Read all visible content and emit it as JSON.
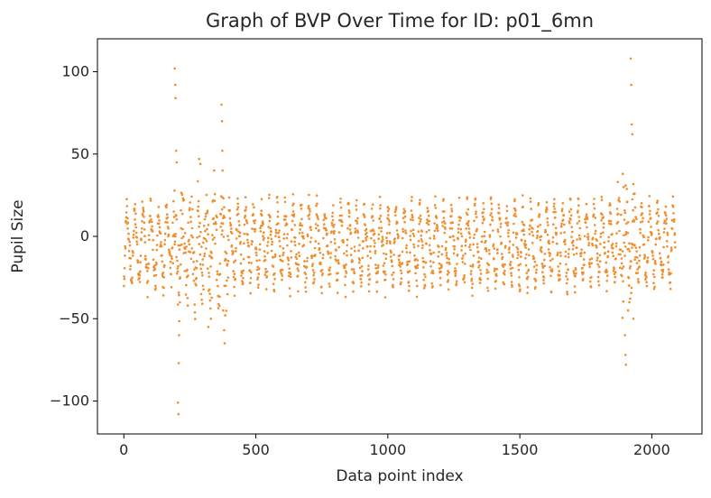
{
  "chart_data": {
    "type": "scatter",
    "title": "Graph of BVP Over Time for ID: p01_6mn",
    "xlabel": "Data point index",
    "ylabel": "Pupil Size",
    "xlim": [
      -100,
      2190
    ],
    "ylim": [
      -120,
      120
    ],
    "xticks": [
      0,
      500,
      1000,
      1500,
      2000
    ],
    "yticks": [
      -100,
      -50,
      0,
      50,
      100
    ],
    "xtick_labels": [
      "0",
      "500",
      "1000",
      "1500",
      "2000"
    ],
    "ytick_labels": [
      "−100",
      "−50",
      "0",
      "50",
      "100"
    ],
    "grid": false,
    "marker_color": "#f28e2b",
    "description": "About 2090 points oscillating between roughly -30 and +20 with ~70 peaks; large spikes near index 190-210 (up to 102, down to -108), 300-390 (up to 80, down to -65) and 1880-1930 (up to 108, down to -78).",
    "n_points": 2090,
    "cycle_length": 30,
    "baseline": {
      "min": -30,
      "max": 20
    },
    "spikes": [
      {
        "x": 193,
        "y": 102
      },
      {
        "x": 195,
        "y": 92
      },
      {
        "x": 196,
        "y": 84
      },
      {
        "x": 198,
        "y": 52
      },
      {
        "x": 200,
        "y": 45
      },
      {
        "x": 205,
        "y": -101
      },
      {
        "x": 207,
        "y": -108
      },
      {
        "x": 208,
        "y": -77
      },
      {
        "x": 209,
        "y": -60
      },
      {
        "x": 212,
        "y": -40
      },
      {
        "x": 285,
        "y": 47
      },
      {
        "x": 290,
        "y": 44
      },
      {
        "x": 300,
        "y": -30
      },
      {
        "x": 320,
        "y": -55
      },
      {
        "x": 330,
        "y": -50
      },
      {
        "x": 370,
        "y": 80
      },
      {
        "x": 372,
        "y": 70
      },
      {
        "x": 373,
        "y": 52
      },
      {
        "x": 374,
        "y": 40
      },
      {
        "x": 376,
        "y": -45
      },
      {
        "x": 380,
        "y": -57
      },
      {
        "x": 382,
        "y": -65
      },
      {
        "x": 384,
        "y": -48
      },
      {
        "x": 1890,
        "y": 38
      },
      {
        "x": 1893,
        "y": 30
      },
      {
        "x": 1898,
        "y": -60
      },
      {
        "x": 1900,
        "y": -72
      },
      {
        "x": 1902,
        "y": -78
      },
      {
        "x": 1910,
        "y": -45
      },
      {
        "x": 1915,
        "y": -40
      },
      {
        "x": 1920,
        "y": 108
      },
      {
        "x": 1922,
        "y": 92
      },
      {
        "x": 1924,
        "y": 68
      },
      {
        "x": 1926,
        "y": 62
      },
      {
        "x": 1930,
        "y": -50
      },
      {
        "x": 1935,
        "y": 26
      }
    ]
  }
}
